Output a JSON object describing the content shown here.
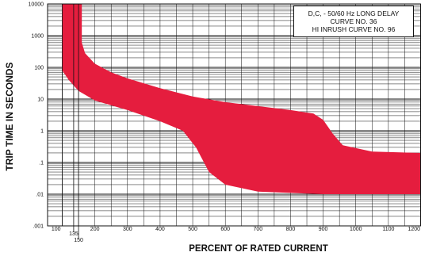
{
  "chart_data": {
    "type": "area",
    "ylabel": "TRIP TIME IN SECONDS",
    "xlabel": "PERCENT OF RATED CURRENT",
    "y_scale": "log",
    "ylim": [
      0.001,
      10000
    ],
    "xlim": [
      55,
      1200
    ],
    "grid": true,
    "legend_position": "top-right",
    "annotation": [
      "D,C, - 50/60 Hz LONG DELAY",
      "CURVE NO. 36",
      "HI INRUSH CURVE NO. 96"
    ],
    "y_ticks": [
      {
        "value": 0.001,
        "label": ".001"
      },
      {
        "value": 0.01,
        "label": ".01"
      },
      {
        "value": 0.1,
        "label": ".1"
      },
      {
        "value": 1,
        "label": "1"
      },
      {
        "value": 10,
        "label": "10"
      },
      {
        "value": 100,
        "label": "100"
      },
      {
        "value": 1000,
        "label": "1000"
      },
      {
        "value": 10000,
        "label": "10000"
      }
    ],
    "x_ticks": [
      {
        "value": 100,
        "label": "100"
      },
      {
        "value": 135,
        "label": "135"
      },
      {
        "value": 150,
        "label": "150"
      },
      {
        "value": 200,
        "label": "200"
      },
      {
        "value": 300,
        "label": "300"
      },
      {
        "value": 400,
        "label": "400"
      },
      {
        "value": 500,
        "label": "500"
      },
      {
        "value": 600,
        "label": "600"
      },
      {
        "value": 700,
        "label": "700"
      },
      {
        "value": 800,
        "label": "800"
      },
      {
        "value": 900,
        "label": "900"
      },
      {
        "value": 1000,
        "label": "1000"
      },
      {
        "value": 1100,
        "label": "1100"
      },
      {
        "value": 1200,
        "label": "1200"
      }
    ],
    "band": {
      "color": "#e51d3e",
      "upper": [
        {
          "x": 160,
          "y": 10000
        },
        {
          "x": 160,
          "y": 600
        },
        {
          "x": 170,
          "y": 280
        },
        {
          "x": 200,
          "y": 130
        },
        {
          "x": 250,
          "y": 70
        },
        {
          "x": 300,
          "y": 45
        },
        {
          "x": 400,
          "y": 22
        },
        {
          "x": 500,
          "y": 12
        },
        {
          "x": 600,
          "y": 8
        },
        {
          "x": 700,
          "y": 6
        },
        {
          "x": 800,
          "y": 4.5
        },
        {
          "x": 870,
          "y": 3.5
        },
        {
          "x": 900,
          "y": 2.2
        },
        {
          "x": 930,
          "y": 0.8
        },
        {
          "x": 960,
          "y": 0.35
        },
        {
          "x": 1050,
          "y": 0.22
        },
        {
          "x": 1200,
          "y": 0.2
        }
      ],
      "lower": [
        {
          "x": 100,
          "y": 10000
        },
        {
          "x": 100,
          "y": 80
        },
        {
          "x": 120,
          "y": 40
        },
        {
          "x": 150,
          "y": 18
        },
        {
          "x": 200,
          "y": 9
        },
        {
          "x": 300,
          "y": 4.5
        },
        {
          "x": 400,
          "y": 2
        },
        {
          "x": 470,
          "y": 1
        },
        {
          "x": 510,
          "y": 0.3
        },
        {
          "x": 550,
          "y": 0.05
        },
        {
          "x": 600,
          "y": 0.02
        },
        {
          "x": 700,
          "y": 0.012
        },
        {
          "x": 900,
          "y": 0.01
        },
        {
          "x": 1200,
          "y": 0.01
        }
      ]
    },
    "reference_lines": [
      {
        "x": 100
      },
      {
        "x": 135
      },
      {
        "x": 150
      }
    ]
  }
}
